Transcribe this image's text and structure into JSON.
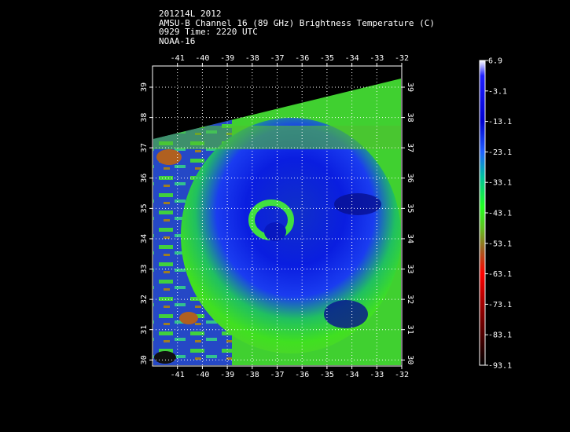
{
  "header": {
    "line1": "201214L 2012",
    "line2": "AMSU-B Channel 16 (89 GHz) Brightness Temperature (C)",
    "line3": "0929 Time: 2220 UTC",
    "line4": "NOAA-16"
  },
  "map": {
    "lon_ticks": [
      "-41",
      "-40",
      "-39",
      "-38",
      "-37",
      "-36",
      "-35",
      "-34",
      "-33",
      "-32"
    ],
    "lat_ticks": [
      "30",
      "31",
      "32",
      "33",
      "34",
      "35",
      "36",
      "37",
      "38",
      "39"
    ],
    "lon_range": [
      -42,
      -32
    ],
    "lat_range": [
      29.8,
      39.7
    ],
    "grid": "dotted"
  },
  "colorbar": {
    "labels": [
      "6.9",
      "-3.1",
      "-13.1",
      "-23.1",
      "-33.1",
      "-43.1",
      "-53.1",
      "-63.1",
      "-73.1",
      "-83.1",
      "-93.1"
    ],
    "range": [
      -93.1,
      6.9
    ]
  }
}
